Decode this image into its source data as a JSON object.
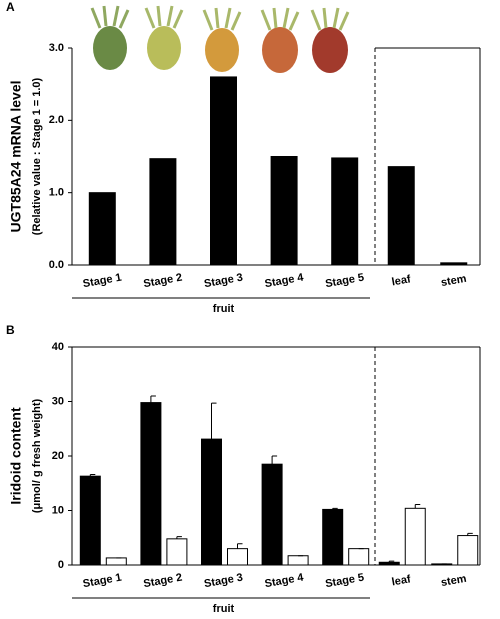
{
  "chart_data": [
    {
      "type": "bar",
      "panel": "A",
      "ylabel": "UGT85A24 mRNA level",
      "ylabel2": "(Relative value : Stage 1 = 1.0)",
      "categories": [
        "Stage 1",
        "Stage 2",
        "Stage 3",
        "Stage 4",
        "Stage 5",
        "leaf",
        "stem"
      ],
      "group_label": "fruit",
      "series": [
        {
          "color": "#000000",
          "values": [
            1.0,
            1.47,
            2.6,
            1.5,
            1.48,
            1.36,
            0.03
          ]
        }
      ],
      "ylim": [
        0,
        3
      ],
      "yticks": [
        {
          "value": 0,
          "label": "0.0"
        },
        {
          "value": 1,
          "label": "1.0"
        },
        {
          "value": 2,
          "label": "2.0"
        },
        {
          "value": 3,
          "label": "3.0"
        }
      ]
    },
    {
      "type": "bar",
      "panel": "B",
      "ylabel": "Iridoid content",
      "ylabel2": "(μmol/ g fresh weight)",
      "categories": [
        "Stage 1",
        "Stage 2",
        "Stage 3",
        "Stage 4",
        "Stage 5",
        "leaf",
        "stem"
      ],
      "group_label": "fruit",
      "series": [
        {
          "color": "#000000",
          "values": [
            16.3,
            29.8,
            23.1,
            18.5,
            10.2,
            0.5,
            0.2
          ],
          "errors": [
            0.3,
            1.2,
            6.6,
            1.5,
            0.2,
            0.2,
            0
          ]
        },
        {
          "color": "#ffffff",
          "values": [
            1.3,
            4.8,
            3.0,
            1.7,
            3.0,
            10.4,
            5.4
          ],
          "errors": [
            0,
            0.4,
            0.9,
            0,
            0,
            0.7,
            0.4
          ]
        }
      ],
      "ylim": [
        0,
        40
      ],
      "yticks": [
        0,
        10,
        20,
        30,
        40
      ]
    }
  ]
}
